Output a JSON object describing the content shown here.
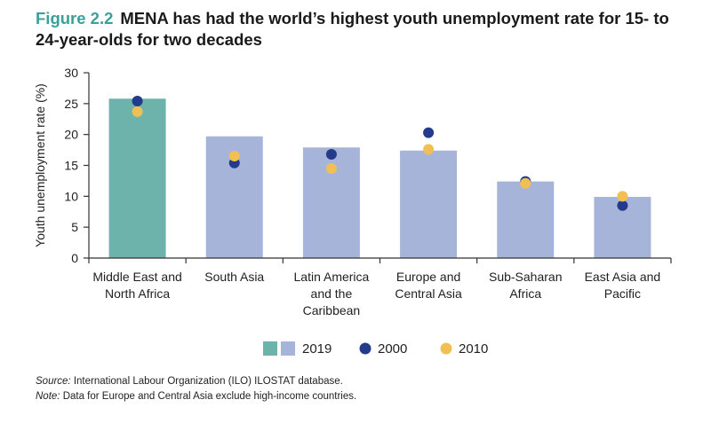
{
  "title": {
    "figure_label": "Figure 2.2",
    "text": "MENA has had the world’s highest youth unemployment rate for 15- to 24-year-olds for two decades"
  },
  "chart_data": {
    "type": "bar",
    "categories": [
      [
        "Middle East and",
        "North Africa"
      ],
      [
        "South Asia"
      ],
      [
        "Latin America",
        "and the",
        "Caribbean"
      ],
      [
        "Europe and",
        "Central Asia"
      ],
      [
        "Sub-Saharan",
        "Africa"
      ],
      [
        "East Asia and",
        "Pacific"
      ]
    ],
    "ylabel": "Youth unemployment rate (%)",
    "ylim": [
      0,
      30
    ],
    "yticks": [
      0,
      5,
      10,
      15,
      20,
      25,
      30
    ],
    "grid": false,
    "series": [
      {
        "name": "2019",
        "kind": "bar",
        "values": [
          25.8,
          19.7,
          17.9,
          17.4,
          12.4,
          9.9
        ]
      },
      {
        "name": "2000",
        "kind": "dot",
        "values": [
          25.4,
          15.4,
          16.8,
          20.3,
          12.4,
          8.5
        ]
      },
      {
        "name": "2010",
        "kind": "dot",
        "values": [
          23.7,
          16.5,
          14.5,
          17.6,
          12.1,
          10.0
        ]
      }
    ],
    "colors": {
      "bar_highlight": "#6db3ac",
      "bar_default": "#a7b4da",
      "dot_2000": "#243a8c",
      "dot_2010": "#f2c052",
      "axis": "#333333"
    },
    "legend_position": "bottom-center"
  },
  "notes": {
    "source_label": "Source:",
    "source_text": " International Labour Organization (ILO) ILOSTAT database.",
    "note_label": "Note:",
    "note_text": " Data for Europe and Central Asia exclude high-income countries."
  }
}
